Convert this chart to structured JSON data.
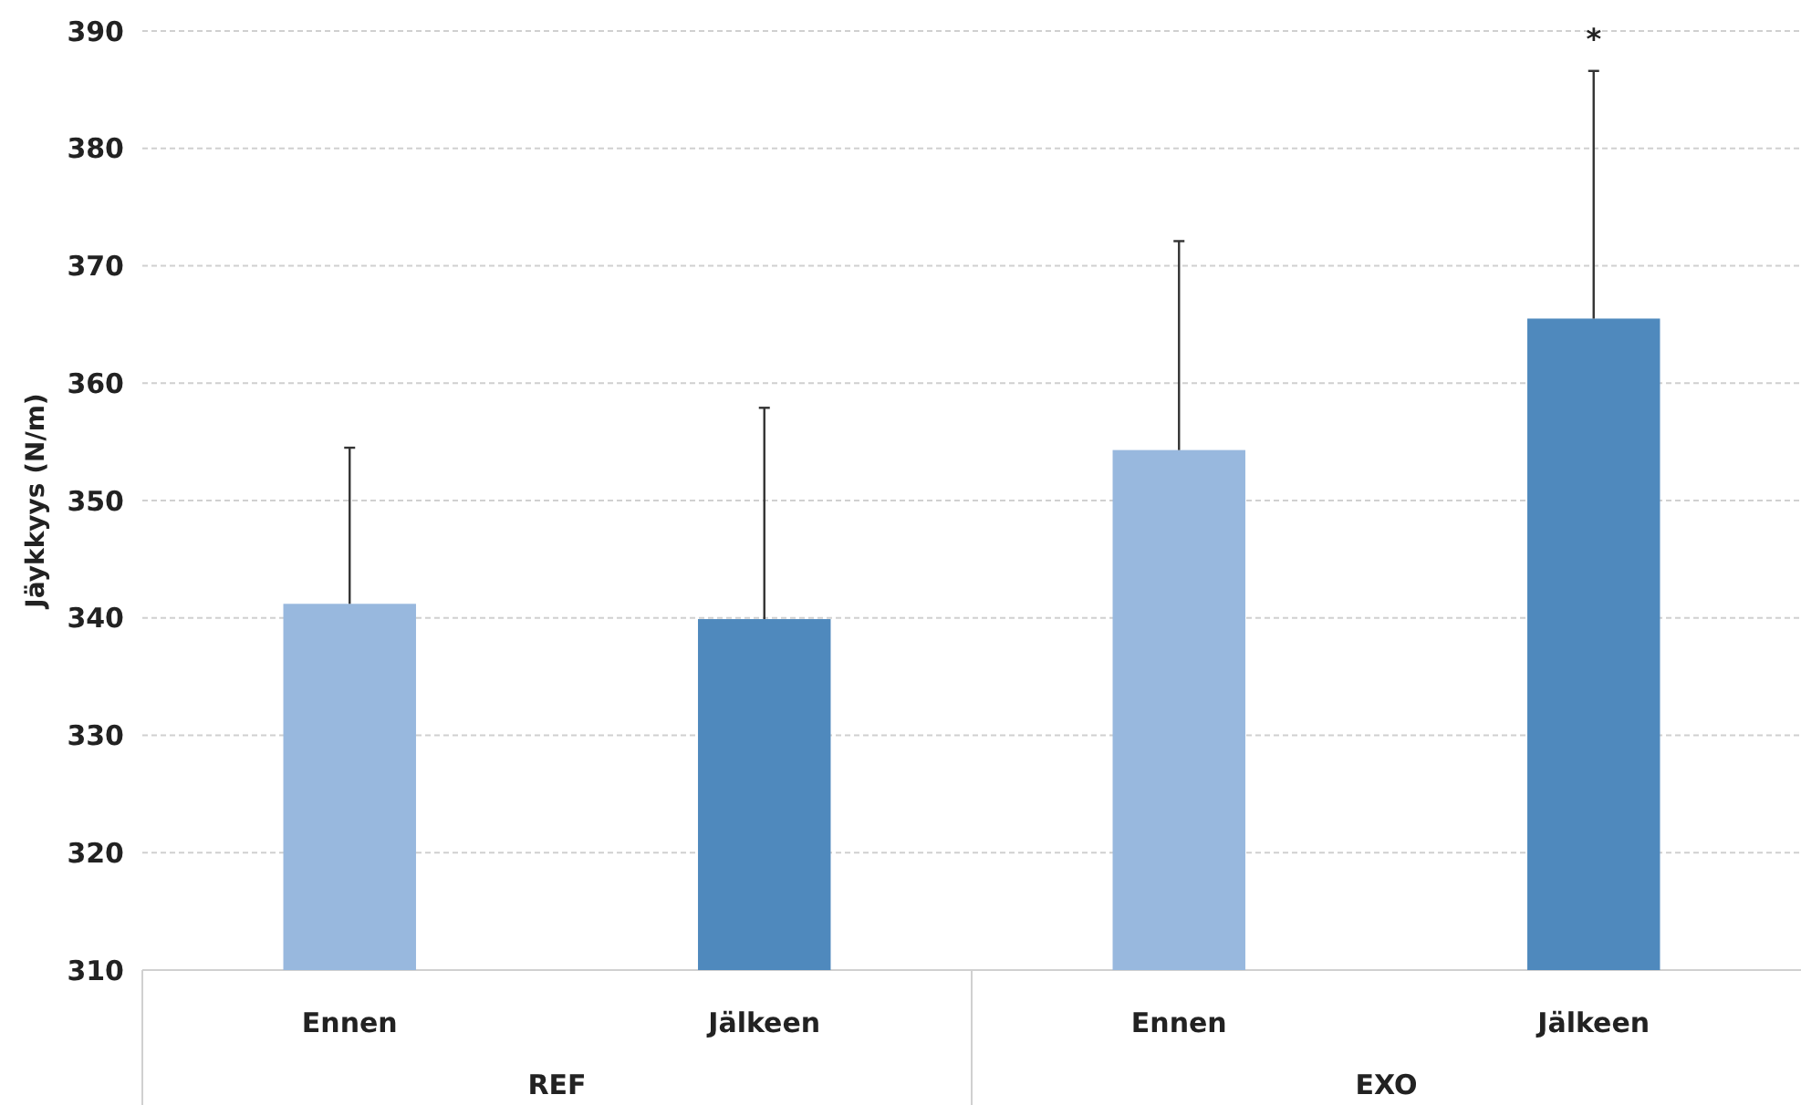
{
  "chart_data": {
    "type": "bar",
    "ylabel": "Jäykkyys (N/m)",
    "categories": [
      "Ennen",
      "Jälkeen",
      "Ennen",
      "Jälkeen"
    ],
    "values": [
      341.2,
      339.9,
      354.3,
      365.5
    ],
    "colors": [
      "#98b8de",
      "#4f89bd",
      "#98b8de",
      "#4f89bd"
    ],
    "errors": [
      [
        341.2,
        354.5
      ],
      [
        339.9,
        357.9
      ],
      [
        354.3,
        372.1
      ],
      [
        365.5,
        386.6
      ]
    ],
    "ylim": [
      310,
      390
    ],
    "yticks": [
      310,
      320,
      330,
      340,
      350,
      360,
      370,
      380,
      390
    ],
    "grid": "y",
    "annotations": [
      "REF",
      "EXO",
      "*"
    ]
  }
}
